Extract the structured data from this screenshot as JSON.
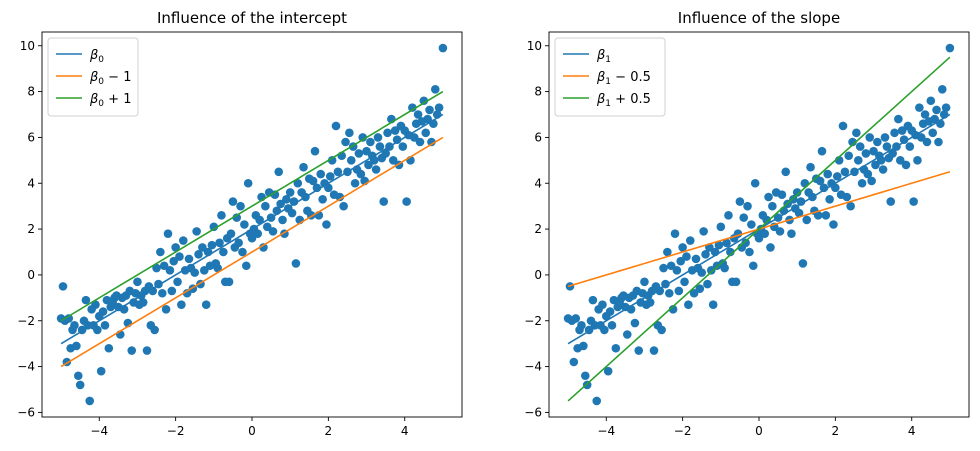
{
  "chart_data": [
    {
      "type": "scatter",
      "title": "Influence of the intercept",
      "xlabel": "",
      "ylabel": "",
      "xlim": [
        -5.5,
        5.5
      ],
      "ylim": [
        -6.2,
        10.6
      ],
      "xticks": [
        -4,
        -2,
        0,
        2,
        4
      ],
      "yticks": [
        -6,
        -4,
        -2,
        0,
        2,
        4,
        6,
        8,
        10
      ],
      "grid": false,
      "legend_position": "top-left",
      "points_color": "#1f77b4",
      "points": [
        [
          -5.0,
          -1.9
        ],
        [
          -4.95,
          -0.5
        ],
        [
          -4.9,
          -2.0
        ],
        [
          -4.85,
          -3.8
        ],
        [
          -4.8,
          -1.9
        ],
        [
          -4.75,
          -3.2
        ],
        [
          -4.7,
          -2.4
        ],
        [
          -4.65,
          -2.2
        ],
        [
          -4.6,
          -3.1
        ],
        [
          -4.55,
          -4.4
        ],
        [
          -4.5,
          -4.8
        ],
        [
          -4.45,
          -2.4
        ],
        [
          -4.4,
          -2.0
        ],
        [
          -4.35,
          -1.1
        ],
        [
          -4.3,
          -2.2
        ],
        [
          -4.25,
          -5.5
        ],
        [
          -4.2,
          -1.5
        ],
        [
          -4.15,
          -2.2
        ],
        [
          -4.1,
          -1.3
        ],
        [
          -4.05,
          -2.4
        ],
        [
          -4.0,
          -1.8
        ],
        [
          -3.95,
          -4.2
        ],
        [
          -3.9,
          -1.6
        ],
        [
          -3.85,
          -2.2
        ],
        [
          -3.8,
          -1.1
        ],
        [
          -3.75,
          -3.2
        ],
        [
          -3.7,
          -1.4
        ],
        [
          -3.65,
          -1.2
        ],
        [
          -3.6,
          -1.0
        ],
        [
          -3.55,
          -0.9
        ],
        [
          -3.5,
          -1.4
        ],
        [
          -3.45,
          -2.6
        ],
        [
          -3.4,
          -1.0
        ],
        [
          -3.35,
          -1.5
        ],
        [
          -3.3,
          -0.9
        ],
        [
          -3.25,
          -2.1
        ],
        [
          -3.2,
          -0.7
        ],
        [
          -3.15,
          -3.3
        ],
        [
          -3.1,
          -1.2
        ],
        [
          -3.05,
          -0.8
        ],
        [
          -3.0,
          -0.3
        ],
        [
          -2.95,
          -1.3
        ],
        [
          -2.9,
          -0.9
        ],
        [
          -2.85,
          -1.2
        ],
        [
          -2.8,
          -0.7
        ],
        [
          -2.75,
          -3.3
        ],
        [
          -2.7,
          -0.5
        ],
        [
          -2.65,
          -2.2
        ],
        [
          -2.6,
          -0.7
        ],
        [
          -2.55,
          -2.4
        ],
        [
          -2.5,
          0.3
        ],
        [
          -2.45,
          -0.4
        ],
        [
          -2.4,
          1.0
        ],
        [
          -2.35,
          -0.8
        ],
        [
          -2.3,
          0.4
        ],
        [
          -2.25,
          -1.5
        ],
        [
          -2.2,
          1.8
        ],
        [
          -2.15,
          0.2
        ],
        [
          -2.1,
          -0.7
        ],
        [
          -2.05,
          0.6
        ],
        [
          -2.0,
          1.2
        ],
        [
          -1.95,
          -0.3
        ],
        [
          -1.9,
          0.8
        ],
        [
          -1.85,
          -1.3
        ],
        [
          -1.8,
          1.5
        ],
        [
          -1.75,
          0.2
        ],
        [
          -1.7,
          -0.8
        ],
        [
          -1.65,
          0.7
        ],
        [
          -1.6,
          0.3
        ],
        [
          -1.55,
          -0.6
        ],
        [
          -1.5,
          0.1
        ],
        [
          -1.45,
          1.9
        ],
        [
          -1.4,
          0.9
        ],
        [
          -1.35,
          -0.4
        ],
        [
          -1.3,
          1.2
        ],
        [
          -1.25,
          0.2
        ],
        [
          -1.2,
          -1.3
        ],
        [
          -1.15,
          1.0
        ],
        [
          -1.1,
          0.4
        ],
        [
          -1.05,
          1.3
        ],
        [
          -1.0,
          2.1
        ],
        [
          -0.95,
          0.5
        ],
        [
          -0.9,
          0.3
        ],
        [
          -0.85,
          1.4
        ],
        [
          -0.8,
          2.6
        ],
        [
          -0.75,
          1.0
        ],
        [
          -0.7,
          -0.3
        ],
        [
          -0.65,
          1.6
        ],
        [
          -0.6,
          -0.3
        ],
        [
          -0.55,
          1.8
        ],
        [
          -0.5,
          3.2
        ],
        [
          -0.45,
          1.2
        ],
        [
          -0.4,
          2.5
        ],
        [
          -0.35,
          1.4
        ],
        [
          -0.3,
          3.0
        ],
        [
          -0.25,
          1.0
        ],
        [
          -0.2,
          2.2
        ],
        [
          -0.15,
          0.4
        ],
        [
          -0.1,
          4.0
        ],
        [
          -0.05,
          1.8
        ],
        [
          0.0,
          1.6
        ],
        [
          0.05,
          2.0
        ],
        [
          0.1,
          2.6
        ],
        [
          0.15,
          1.8
        ],
        [
          0.2,
          2.4
        ],
        [
          0.25,
          3.4
        ],
        [
          0.3,
          1.2
        ],
        [
          0.35,
          3.0
        ],
        [
          0.4,
          2.1
        ],
        [
          0.45,
          3.6
        ],
        [
          0.5,
          2.5
        ],
        [
          0.55,
          1.9
        ],
        [
          0.6,
          3.5
        ],
        [
          0.65,
          2.8
        ],
        [
          0.7,
          4.5
        ],
        [
          0.75,
          3.1
        ],
        [
          0.8,
          2.4
        ],
        [
          0.85,
          1.8
        ],
        [
          0.9,
          3.3
        ],
        [
          0.95,
          2.9
        ],
        [
          1.0,
          3.6
        ],
        [
          1.05,
          2.7
        ],
        [
          1.1,
          3.2
        ],
        [
          1.15,
          0.5
        ],
        [
          1.2,
          4.0
        ],
        [
          1.25,
          2.4
        ],
        [
          1.3,
          3.6
        ],
        [
          1.35,
          4.7
        ],
        [
          1.4,
          3.4
        ],
        [
          1.45,
          2.8
        ],
        [
          1.5,
          4.2
        ],
        [
          1.55,
          2.6
        ],
        [
          1.6,
          4.1
        ],
        [
          1.65,
          5.4
        ],
        [
          1.7,
          3.8
        ],
        [
          1.75,
          2.6
        ],
        [
          1.8,
          4.4
        ],
        [
          1.85,
          3.3
        ],
        [
          1.9,
          4.0
        ],
        [
          1.95,
          2.2
        ],
        [
          2.0,
          3.8
        ],
        [
          2.05,
          4.3
        ],
        [
          2.1,
          5.0
        ],
        [
          2.15,
          3.5
        ],
        [
          2.2,
          6.5
        ],
        [
          2.25,
          4.5
        ],
        [
          2.3,
          3.4
        ],
        [
          2.35,
          5.2
        ],
        [
          2.4,
          3.0
        ],
        [
          2.45,
          5.8
        ],
        [
          2.5,
          4.5
        ],
        [
          2.55,
          6.2
        ],
        [
          2.6,
          5.0
        ],
        [
          2.65,
          5.6
        ],
        [
          2.7,
          4.0
        ],
        [
          2.75,
          4.6
        ],
        [
          2.8,
          5.3
        ],
        [
          2.85,
          4.4
        ],
        [
          2.9,
          6.0
        ],
        [
          2.95,
          4.1
        ],
        [
          3.0,
          5.4
        ],
        [
          3.05,
          4.8
        ],
        [
          3.1,
          5.8
        ],
        [
          3.15,
          5.2
        ],
        [
          3.2,
          5.0
        ],
        [
          3.25,
          4.6
        ],
        [
          3.3,
          6.0
        ],
        [
          3.35,
          5.6
        ],
        [
          3.4,
          5.1
        ],
        [
          3.45,
          3.2
        ],
        [
          3.5,
          5.3
        ],
        [
          3.55,
          6.2
        ],
        [
          3.6,
          5.6
        ],
        [
          3.65,
          6.8
        ],
        [
          3.7,
          5.0
        ],
        [
          3.75,
          6.3
        ],
        [
          3.8,
          5.9
        ],
        [
          3.85,
          4.8
        ],
        [
          3.9,
          6.5
        ],
        [
          3.95,
          5.6
        ],
        [
          4.0,
          6.3
        ],
        [
          4.05,
          3.2
        ],
        [
          4.1,
          6.1
        ],
        [
          4.15,
          5.0
        ],
        [
          4.2,
          7.3
        ],
        [
          4.25,
          6.0
        ],
        [
          4.3,
          6.6
        ],
        [
          4.35,
          7.0
        ],
        [
          4.4,
          5.8
        ],
        [
          4.45,
          6.7
        ],
        [
          4.5,
          7.6
        ],
        [
          4.55,
          6.2
        ],
        [
          4.6,
          6.8
        ],
        [
          4.65,
          7.2
        ],
        [
          4.7,
          5.8
        ],
        [
          4.75,
          6.6
        ],
        [
          4.8,
          8.1
        ],
        [
          4.85,
          7.0
        ],
        [
          4.9,
          7.3
        ],
        [
          5.0,
          9.9
        ]
      ],
      "series": [
        {
          "name": "β0",
          "color": "#1f77b4",
          "x": [
            -5,
            5
          ],
          "y": [
            -3,
            7
          ]
        },
        {
          "name": "β0 − 1",
          "color": "#ff7f0e",
          "x": [
            -5,
            5
          ],
          "y": [
            -4,
            6
          ]
        },
        {
          "name": "β0 + 1",
          "color": "#2ca02c",
          "x": [
            -5,
            5
          ],
          "y": [
            -2,
            8
          ]
        }
      ],
      "legend": [
        {
          "base": "β",
          "sub": "0",
          "suffix": ""
        },
        {
          "base": "β",
          "sub": "0",
          "suffix": " − 1"
        },
        {
          "base": "β",
          "sub": "0",
          "suffix": " + 1"
        }
      ]
    },
    {
      "type": "scatter",
      "title": "Influence of the slope",
      "xlabel": "",
      "ylabel": "",
      "xlim": [
        -5.5,
        5.5
      ],
      "ylim": [
        -6.2,
        10.6
      ],
      "xticks": [
        -4,
        -2,
        0,
        2,
        4
      ],
      "yticks": [
        -6,
        -4,
        -2,
        0,
        2,
        4,
        6,
        8,
        10
      ],
      "grid": false,
      "legend_position": "top-left",
      "points_color": "#1f77b4",
      "points_same_as_first": true,
      "series": [
        {
          "name": "β1",
          "color": "#1f77b4",
          "x": [
            -5,
            5
          ],
          "y": [
            -3,
            7
          ]
        },
        {
          "name": "β1 − 0.5",
          "color": "#ff7f0e",
          "x": [
            -5,
            5
          ],
          "y": [
            -0.5,
            4.5
          ]
        },
        {
          "name": "β1 + 0.5",
          "color": "#2ca02c",
          "x": [
            -5,
            5
          ],
          "y": [
            -5.5,
            9.5
          ]
        }
      ],
      "legend": [
        {
          "base": "β",
          "sub": "1",
          "suffix": ""
        },
        {
          "base": "β",
          "sub": "1",
          "suffix": " − 0.5"
        },
        {
          "base": "β",
          "sub": "1",
          "suffix": " + 0.5"
        }
      ]
    }
  ]
}
